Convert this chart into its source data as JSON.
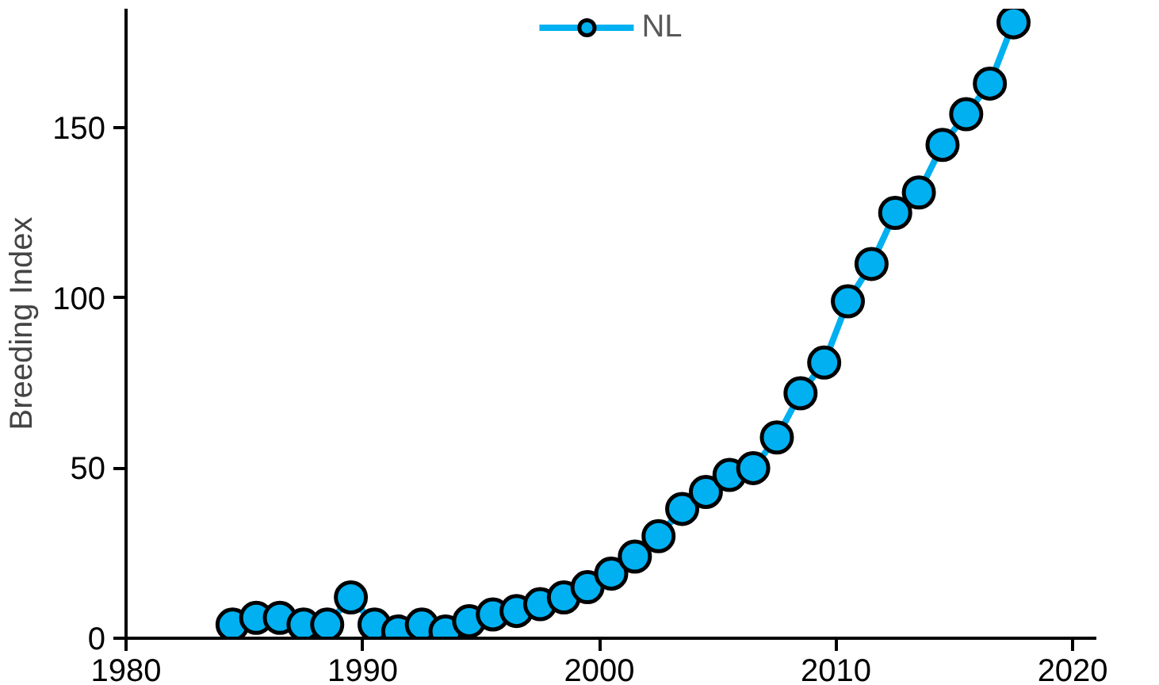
{
  "chart_data": {
    "type": "line",
    "ylabel": "Breeding Index",
    "x": [
      1984.5,
      1985.5,
      1986.5,
      1987.5,
      1988.5,
      1989.5,
      1990.5,
      1991.5,
      1992.5,
      1993.5,
      1994.5,
      1995.5,
      1996.5,
      1997.5,
      1998.5,
      1999.5,
      2000.5,
      2001.5,
      2002.5,
      2003.5,
      2004.5,
      2005.5,
      2006.5,
      2007.5,
      2008.5,
      2009.5,
      2010.5,
      2011.5,
      2012.5,
      2013.5,
      2014.5,
      2015.5,
      2016.5,
      2017.5
    ],
    "series": [
      {
        "name": "NL",
        "color": "#00b0f0",
        "values": [
          4,
          6,
          6,
          4,
          4,
          12,
          4,
          2,
          4,
          2,
          5,
          7,
          8,
          10,
          12,
          15,
          19,
          24,
          30,
          38,
          43,
          48,
          50,
          59,
          72,
          81,
          99,
          110,
          125,
          131,
          145,
          154,
          163,
          181
        ]
      }
    ],
    "xlim": [
      1980,
      2021
    ],
    "xticks": [
      1980,
      1990,
      2000,
      2010,
      2020
    ],
    "ylim": [
      0,
      185
    ],
    "yticks": [
      0,
      50,
      100,
      150
    ],
    "grid": false,
    "legend": "top",
    "marker": "circle",
    "line_style": "solid"
  }
}
